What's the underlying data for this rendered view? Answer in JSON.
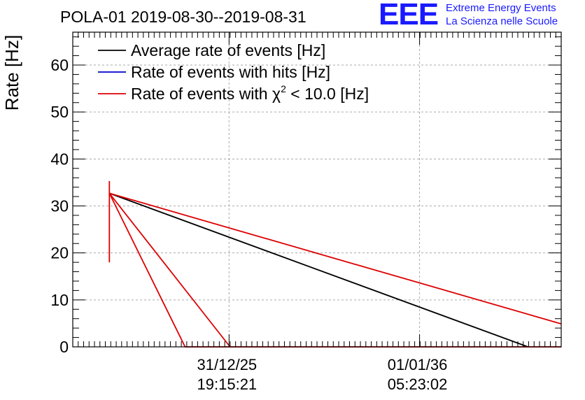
{
  "chart_data": {
    "type": "line",
    "title": "POLA-01 2019-08-30--2019-08-31",
    "ylabel": "Rate [Hz]",
    "xlabel": "",
    "xlim": [
      0,
      100
    ],
    "ylim": [
      0,
      67
    ],
    "yticks": [
      0,
      10,
      20,
      30,
      40,
      50,
      60
    ],
    "xticks": [
      {
        "x": 32,
        "label": [
          "31/12/25",
          "19:15:21"
        ]
      },
      {
        "x": 71,
        "label": [
          "01/01/36",
          "05:23:02"
        ]
      }
    ],
    "grid": true,
    "legend_position": "top-left",
    "series": [
      {
        "name": "Average rate of events [Hz]",
        "color": "#000000",
        "segments": [
          [
            [
              7.5,
              32.7
            ],
            [
              93.2,
              0
            ]
          ]
        ]
      },
      {
        "name": "Rate of events with hits [Hz]",
        "color": "#0000cc",
        "segments": []
      },
      {
        "name": "Rate of events with χ² < 10.0 [Hz]",
        "color": "#dd0000",
        "segments": [
          [
            [
              7.5,
              18.0
            ],
            [
              7.5,
              35.3
            ]
          ],
          [
            [
              7.5,
              32.7
            ],
            [
              100,
              4.9
            ]
          ],
          [
            [
              7.5,
              32.7
            ],
            [
              23.0,
              0
            ],
            [
              100,
              0
            ]
          ],
          [
            [
              7.5,
              32.7
            ],
            [
              32.2,
              0
            ]
          ]
        ]
      }
    ]
  },
  "legend": {
    "entries": [
      {
        "text": "Average rate of events [Hz]",
        "color": "#000000"
      },
      {
        "text": "Rate of events with hits [Hz]",
        "color": "#0000cc"
      },
      {
        "text_before": "Rate of events with χ",
        "sup": "2",
        "text_after": " < 10.0 [Hz]",
        "color": "#dd0000"
      }
    ]
  },
  "logo": {
    "mark": "EEE",
    "line1": "Extreme Energy Events",
    "line2": "La Scienza nelle Scuole",
    "color": "#1a1aff"
  }
}
